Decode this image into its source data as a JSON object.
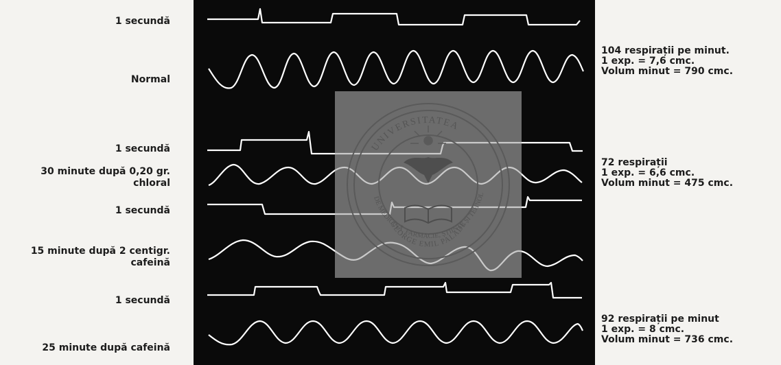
{
  "labels": {
    "sec1": "1 secundă",
    "normal": "Normal",
    "sec2": "1 secundă",
    "chloral": "30 minute după 0,20 gr.\nchloral",
    "sec3": "1 secundă",
    "cafeina": "15 minute după 2 centigr.\ncafeină",
    "sec4": "1 secundă",
    "after_cafeina": "25 minute după cafeină"
  },
  "notes": {
    "n1": "104 respirații pe minut.\n1 exp. = 7,6 cmc.\nVolum minut = 790 cmc.",
    "n2": "72 respirații\n1 exp. = 6,6 cmc.\nVolum minut = 475 cmc.",
    "n3": "92 respirații pe minut\n1 exp. = 8 cmc.\nVolum minut = 736 cmc."
  },
  "seal": {
    "top_text": "UNIVERSITATEA",
    "ring_text": "DE MEDICINĂ, FARMACIE, ȘTIINȚE ȘI TEHNOLOGIE",
    "name_text": "GEORGE EMIL PALADE",
    "city_text": "TÂRGU MUREȘ",
    "left_text": "DE",
    "right_text": "REȘ"
  },
  "colors": {
    "panel": "#0a0a0a",
    "trace": "#ffffff",
    "page": "#f4f3f0"
  }
}
